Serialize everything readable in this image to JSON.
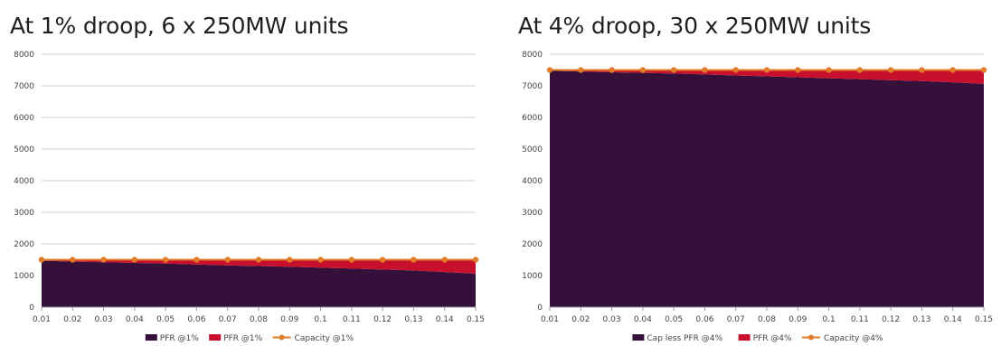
{
  "colors": {
    "area_base": "#34103a",
    "area_pfr": "#c8102e",
    "capacity_line": "#e07b27",
    "grid": "#d0d0d0",
    "axis": "#999999"
  },
  "chart_data": [
    {
      "type": "area",
      "title": "At 1% droop, 6 x 250MW units",
      "x": [
        "0.01",
        "0.02",
        "0.03",
        "0.04",
        "0.05",
        "0.06",
        "0.07",
        "0.08",
        "0.09",
        "0.1",
        "0.11",
        "0.12",
        "0.13",
        "0.14",
        "0.15"
      ],
      "ylim": [
        0,
        8000
      ],
      "yticks": [
        "0",
        "1000",
        "2000",
        "3000",
        "4000",
        "5000",
        "6000",
        "7000",
        "8000"
      ],
      "grid": true,
      "legend": "bottom",
      "series": [
        {
          "name": "PFR @1%",
          "kind": "area",
          "values": [
            1470,
            1440,
            1420,
            1400,
            1380,
            1350,
            1320,
            1300,
            1280,
            1250,
            1220,
            1190,
            1160,
            1110,
            1060
          ]
        },
        {
          "name": "PFR @1%",
          "kind": "area",
          "values": [
            30,
            60,
            80,
            100,
            120,
            150,
            180,
            200,
            220,
            250,
            280,
            310,
            340,
            390,
            440
          ]
        },
        {
          "name": "Capacity  @1%",
          "kind": "line",
          "values": [
            1500,
            1500,
            1500,
            1500,
            1500,
            1500,
            1500,
            1500,
            1500,
            1500,
            1500,
            1500,
            1500,
            1500,
            1500
          ]
        }
      ]
    },
    {
      "type": "area",
      "title": "At 4% droop, 30 x 250MW units",
      "x": [
        "0.01",
        "0.02",
        "0.03",
        "0.04",
        "0.05",
        "0.06",
        "0.07",
        "0.08",
        "0.09",
        "0.1",
        "0.11",
        "0.12",
        "0.13",
        "0.14",
        "0.15"
      ],
      "ylim": [
        0,
        8000
      ],
      "yticks": [
        "0",
        "1000",
        "2000",
        "3000",
        "4000",
        "5000",
        "6000",
        "7000",
        "8000"
      ],
      "grid": true,
      "legend": "bottom",
      "series": [
        {
          "name": "Cap less PFR @4%",
          "kind": "area",
          "values": [
            7480,
            7450,
            7430,
            7410,
            7390,
            7360,
            7330,
            7300,
            7270,
            7240,
            7210,
            7180,
            7150,
            7110,
            7060
          ]
        },
        {
          "name": "PFR @4%",
          "kind": "area",
          "values": [
            20,
            50,
            70,
            90,
            110,
            140,
            170,
            200,
            230,
            260,
            290,
            320,
            350,
            390,
            440
          ]
        },
        {
          "name": "Capacity  @4%",
          "kind": "line",
          "values": [
            7500,
            7500,
            7500,
            7500,
            7500,
            7500,
            7500,
            7500,
            7500,
            7500,
            7500,
            7500,
            7500,
            7500,
            7500
          ]
        }
      ]
    }
  ]
}
